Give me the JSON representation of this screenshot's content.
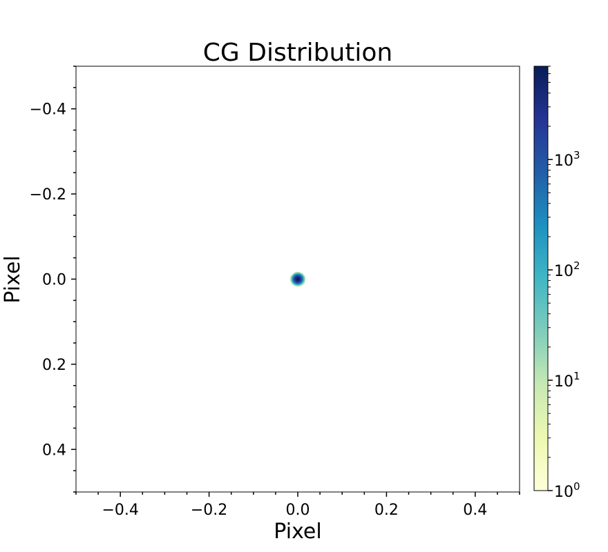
{
  "chart_data": {
    "type": "heatmap",
    "title": "CG Distribution",
    "xlabel": "Pixel",
    "ylabel": "Pixel",
    "xlim": [
      -0.5,
      0.5
    ],
    "ylim": [
      0.5,
      -0.5
    ],
    "y_inverted": true,
    "grid": false,
    "x_ticks": [
      {
        "value": -0.4,
        "label": "−0.4"
      },
      {
        "value": -0.2,
        "label": "−0.2"
      },
      {
        "value": 0.0,
        "label": "0.0"
      },
      {
        "value": 0.2,
        "label": "0.2"
      },
      {
        "value": 0.4,
        "label": "0.4"
      }
    ],
    "y_ticks": [
      {
        "value": -0.4,
        "label": "−0.4"
      },
      {
        "value": -0.2,
        "label": "−0.2"
      },
      {
        "value": 0.0,
        "label": "0.0"
      },
      {
        "value": 0.2,
        "label": "0.2"
      },
      {
        "value": 0.4,
        "label": "0.4"
      }
    ],
    "colorbar": {
      "scale": "log",
      "range": [
        1,
        7000
      ],
      "colormap": "YlGnBu",
      "colors": [
        "#ffffd9",
        "#edf8b1",
        "#c7e9b4",
        "#7fcdbb",
        "#41b6c4",
        "#1d91c0",
        "#225ea8",
        "#253494",
        "#081d58"
      ],
      "ticks": [
        {
          "value": 1,
          "base": "10",
          "exp": "0"
        },
        {
          "value": 10,
          "base": "10",
          "exp": "1"
        },
        {
          "value": 100,
          "base": "10",
          "exp": "2"
        },
        {
          "value": 1000,
          "base": "10",
          "exp": "3"
        }
      ]
    },
    "distribution": {
      "center": [
        0.0,
        0.0
      ],
      "peak_count": 7000,
      "sigma": 0.0045,
      "extent_radius": 0.017
    }
  }
}
